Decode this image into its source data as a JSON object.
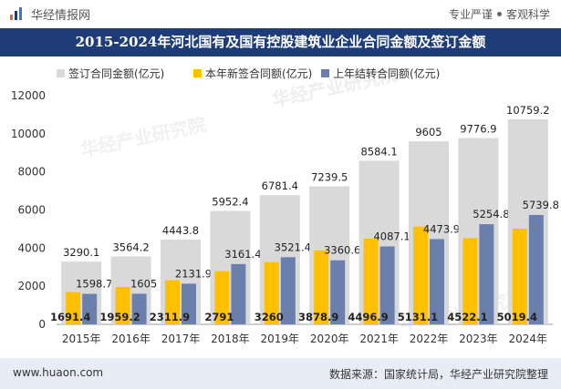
{
  "header": {
    "brand": "华经情报网",
    "tagline_left": "专业严谨",
    "tagline_right": "客观科学"
  },
  "footer": {
    "site": "www.huaon.com",
    "source": "数据来源：国家统计局，华经产业研究院整理"
  },
  "watermark": "华经产业研究院",
  "colors": {
    "title_bar": "#1e3d78",
    "total": "#d9d9d9",
    "new": "#ffc000",
    "carry": "#6b7fad",
    "footer_bg": "#e8edf5"
  },
  "chart_data": {
    "type": "bar",
    "title": "2015-2024年河北国有及国有控股建筑业企业合同金额及签订金额",
    "categories": [
      "2015年",
      "2016年",
      "2017年",
      "2018年",
      "2019年",
      "2020年",
      "2021年",
      "2022年",
      "2023年",
      "2024年"
    ],
    "series": [
      {
        "name": "签订合同金额(亿元)",
        "values": [
          3290.1,
          3564.2,
          4443.8,
          5952.4,
          6781.4,
          7239.5,
          8584.1,
          9605,
          9776.9,
          10759.2
        ],
        "labels": [
          "3290.1",
          "3564.2",
          "4443.8",
          "5952.4",
          "6781.4",
          "7239.5",
          "8584.1",
          "9605",
          "9776.9",
          "10759.2"
        ]
      },
      {
        "name": "本年新签合同额(亿元)",
        "values": [
          1691.4,
          1959.2,
          2311.9,
          2791,
          3260,
          3878.9,
          4496.9,
          5131.1,
          4522.1,
          5019.4
        ],
        "labels": [
          "1691.4",
          "1959.2",
          "2311.9",
          "2791",
          "3260",
          "3878.9",
          "4496.9",
          "5131.1",
          "4522.1",
          "5019.4"
        ]
      },
      {
        "name": "上年结转合同额(亿元)",
        "values": [
          1598.7,
          1605,
          2131.9,
          3161.4,
          3521.4,
          3360.6,
          4087.1,
          4473.9,
          5254.8,
          5739.8
        ],
        "labels": [
          "1598.7",
          "1605",
          "2131.9",
          "3161.4",
          "3521.4",
          "3360.6",
          "4087.1",
          "4473.9",
          "5254.8",
          "5739.8"
        ]
      }
    ],
    "ylim": [
      0,
      12000
    ],
    "yticks": [
      "0",
      "2000",
      "4000",
      "6000",
      "8000",
      "10000",
      "12000"
    ],
    "xlabel": "",
    "ylabel": "",
    "legend": "top",
    "grid": false
  }
}
